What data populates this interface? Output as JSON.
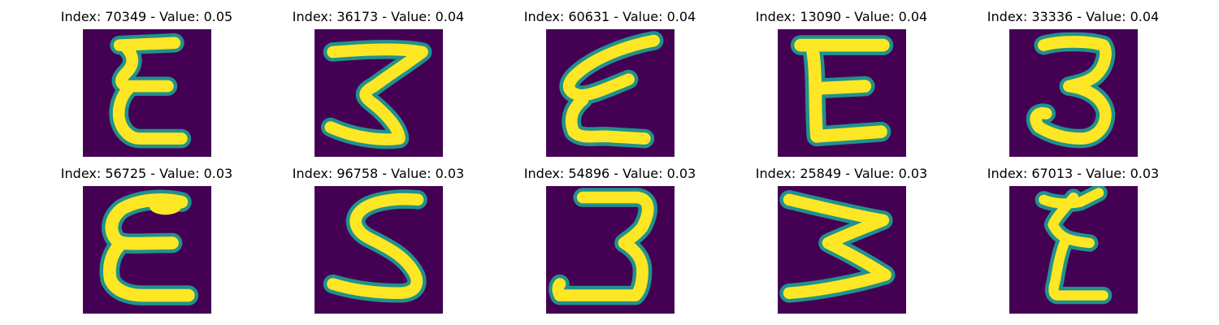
{
  "colors": {
    "background": "#440154",
    "stroke_core": "#fde725",
    "stroke_mid": "#5ec962",
    "stroke_edge": "#21918c"
  },
  "figure": {
    "panels": [
      {
        "title": "Index: 70349 - Value: 0.05",
        "glyph": "E-narrow"
      },
      {
        "title": "Index: 36173 - Value: 0.04",
        "glyph": "3-wide"
      },
      {
        "title": "Index: 60631 - Value: 0.04",
        "glyph": "E-slanted"
      },
      {
        "title": "Index: 13090 - Value: 0.04",
        "glyph": "E-block"
      },
      {
        "title": "Index: 33336 - Value: 0.04",
        "glyph": "3-round"
      },
      {
        "title": "Index: 56725 - Value: 0.03",
        "glyph": "E-round"
      },
      {
        "title": "Index: 96758 - Value: 0.03",
        "glyph": "S-shape"
      },
      {
        "title": "Index: 54896 - Value: 0.03",
        "glyph": "3-underline"
      },
      {
        "title": "Index: 25849 - Value: 0.03",
        "glyph": "W-sideways"
      },
      {
        "title": "Index: 67013 - Value: 0.03",
        "glyph": "E-thin"
      }
    ]
  }
}
